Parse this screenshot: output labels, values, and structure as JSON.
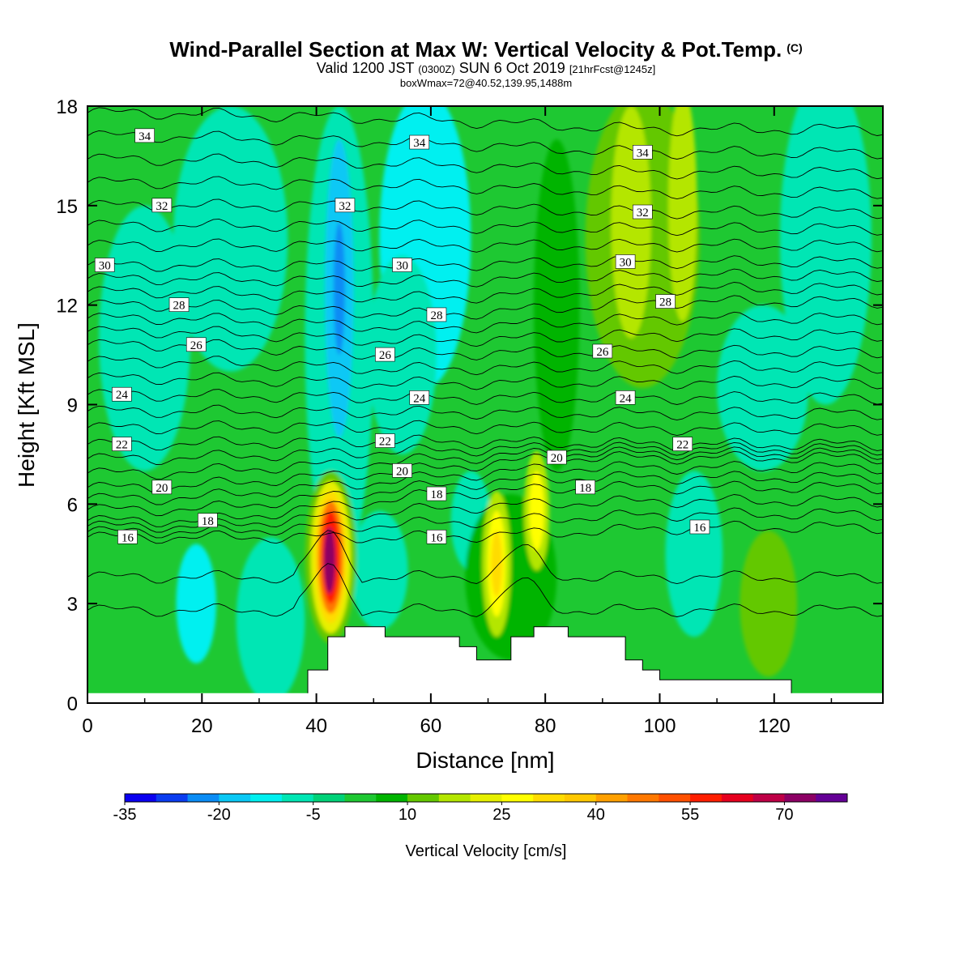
{
  "title": {
    "main": "Wind-Parallel Section at Max W: Vertical Velocity & Pot.Temp.",
    "copyright": "(C)",
    "valid_prefix": "Valid 1200 JST",
    "valid_z": "(0300Z)",
    "valid_date": "SUN 6 Oct 2019",
    "valid_fcst": "[21hrFcst@1245z]",
    "box_info": "boxWmax=72@40.52,139.95,1488m"
  },
  "chart_data": {
    "type": "heatmap",
    "xlabel": "Distance [nm]",
    "ylabel": "Height [Kft MSL]",
    "xlim": [
      0,
      139
    ],
    "ylim": [
      0,
      18
    ],
    "x_ticks": [
      0,
      20,
      40,
      60,
      80,
      100,
      120
    ],
    "y_ticks": [
      0,
      3,
      6,
      9,
      12,
      15,
      18
    ],
    "colorbar": {
      "title": "Vertical Velocity [cm/s]",
      "tick_labels": [
        -35,
        -20,
        -5,
        10,
        25,
        40,
        55,
        70
      ],
      "levels": [
        -35,
        -30,
        -25,
        -20,
        -15,
        -10,
        -5,
        0,
        5,
        10,
        15,
        20,
        25,
        30,
        35,
        40,
        45,
        50,
        55,
        60,
        65,
        70,
        75
      ],
      "colors": [
        "#0a00f0",
        "#0a3cf0",
        "#0a8cf5",
        "#0ac8f5",
        "#00f0f0",
        "#00e6b4",
        "#00d278",
        "#1ec832",
        "#00b400",
        "#64c800",
        "#b4e600",
        "#e6f000",
        "#ffff00",
        "#ffdc00",
        "#ffc800",
        "#ffa000",
        "#ff7800",
        "#ff5000",
        "#ff1e00",
        "#e6001e",
        "#be0046",
        "#8c0064",
        "#640096"
      ]
    },
    "theta_contours": {
      "unit": "theta labels",
      "label_values": [
        16,
        18,
        20,
        22,
        24,
        26,
        28,
        30,
        32,
        34
      ],
      "labels": [
        {
          "value": 34,
          "x": 10,
          "z": 17.1
        },
        {
          "value": 34,
          "x": 58,
          "z": 16.9
        },
        {
          "value": 34,
          "x": 97,
          "z": 16.6
        },
        {
          "value": 32,
          "x": 13,
          "z": 15.0
        },
        {
          "value": 32,
          "x": 45,
          "z": 15.0
        },
        {
          "value": 32,
          "x": 97,
          "z": 14.8
        },
        {
          "value": 30,
          "x": 3,
          "z": 13.2
        },
        {
          "value": 30,
          "x": 55,
          "z": 13.2
        },
        {
          "value": 30,
          "x": 94,
          "z": 13.3
        },
        {
          "value": 28,
          "x": 16,
          "z": 12.0
        },
        {
          "value": 28,
          "x": 61,
          "z": 11.7
        },
        {
          "value": 28,
          "x": 101,
          "z": 12.1
        },
        {
          "value": 26,
          "x": 19,
          "z": 10.8
        },
        {
          "value": 26,
          "x": 52,
          "z": 10.5
        },
        {
          "value": 26,
          "x": 90,
          "z": 10.6
        },
        {
          "value": 24,
          "x": 6,
          "z": 9.3
        },
        {
          "value": 24,
          "x": 58,
          "z": 9.2
        },
        {
          "value": 24,
          "x": 94,
          "z": 9.2
        },
        {
          "value": 22,
          "x": 6,
          "z": 7.8
        },
        {
          "value": 22,
          "x": 52,
          "z": 7.9
        },
        {
          "value": 22,
          "x": 104,
          "z": 7.8
        },
        {
          "value": 20,
          "x": 13,
          "z": 6.5
        },
        {
          "value": 20,
          "x": 55,
          "z": 7.0
        },
        {
          "value": 20,
          "x": 82,
          "z": 7.4
        },
        {
          "value": 18,
          "x": 21,
          "z": 5.5
        },
        {
          "value": 18,
          "x": 61,
          "z": 6.3
        },
        {
          "value": 18,
          "x": 87,
          "z": 6.5
        },
        {
          "value": 16,
          "x": 7,
          "z": 5.0
        },
        {
          "value": 16,
          "x": 61,
          "z": 5.0
        },
        {
          "value": 16,
          "x": 107,
          "z": 5.3
        }
      ]
    },
    "w_features": [
      {
        "x": 42.5,
        "z": 4.5,
        "w": 72
      },
      {
        "x": 71.5,
        "z": 4.2,
        "w": 30
      },
      {
        "x": 78.5,
        "z": 5.8,
        "w": 28
      },
      {
        "x": 44,
        "z": 12.5,
        "w": -22
      },
      {
        "x": 95,
        "z": 14,
        "w": 18
      },
      {
        "x": 104,
        "z": 15,
        "w": 18
      },
      {
        "x": 119,
        "z": 3.5,
        "w": 12
      },
      {
        "x": 19,
        "z": 3.2,
        "w": -10
      },
      {
        "x": 67,
        "z": 5.5,
        "w": -10
      },
      {
        "x": 25,
        "z": 14,
        "w": -6
      },
      {
        "x": 59,
        "z": 14,
        "w": -12
      },
      {
        "x": 129,
        "z": 13,
        "w": -6
      }
    ],
    "terrain": [
      [
        38.5,
        0.3
      ],
      [
        38.5,
        1.0
      ],
      [
        42,
        1.0
      ],
      [
        42,
        2.0
      ],
      [
        45,
        2.0
      ],
      [
        45,
        2.3
      ],
      [
        52,
        2.3
      ],
      [
        52,
        2.0
      ],
      [
        65,
        2.0
      ],
      [
        65,
        1.7
      ],
      [
        68,
        1.7
      ],
      [
        68,
        1.3
      ],
      [
        74,
        1.3
      ],
      [
        74,
        2.0
      ],
      [
        78,
        2.0
      ],
      [
        78,
        2.3
      ],
      [
        84,
        2.3
      ],
      [
        84,
        2.0
      ],
      [
        94,
        2.0
      ],
      [
        94,
        1.3
      ],
      [
        97,
        1.3
      ],
      [
        97,
        1.0
      ],
      [
        100,
        1.0
      ],
      [
        100,
        0.7
      ],
      [
        123,
        0.7
      ],
      [
        123,
        0.3
      ]
    ]
  }
}
